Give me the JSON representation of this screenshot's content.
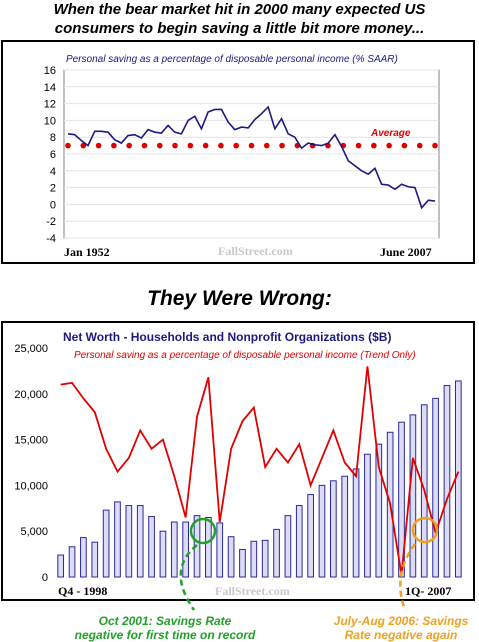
{
  "headline_line1": "When the bear market hit in 2000 many expected US",
  "headline_line2": "consumers to begin saving a little bit more money...",
  "subhead": "They Were Wrong:",
  "chart_data": [
    {
      "type": "line",
      "title": "Personal saving as a percentage of disposable personal income (% SAAR)",
      "x_start_label": "Jan 1952",
      "x_end_label": "June 2007",
      "watermark": "FallStreet.com",
      "ylim": [
        -4,
        16
      ],
      "yticks": [
        -4,
        -2,
        0,
        2,
        4,
        6,
        8,
        10,
        12,
        14,
        16
      ],
      "average_label": "Average",
      "average_value": 7,
      "series": [
        {
          "name": "Personal saving rate",
          "color": "#1a1a80",
          "x": [
            1952,
            1953,
            1954,
            1955,
            1956,
            1957,
            1958,
            1959,
            1960,
            1961,
            1962,
            1963,
            1964,
            1965,
            1966,
            1967,
            1968,
            1969,
            1970,
            1971,
            1972,
            1973,
            1974,
            1975,
            1976,
            1977,
            1978,
            1979,
            1980,
            1981,
            1982,
            1983,
            1984,
            1985,
            1986,
            1987,
            1988,
            1989,
            1990,
            1991,
            1992,
            1993,
            1994,
            1995,
            1996,
            1997,
            1998,
            1999,
            2000,
            2001,
            2002,
            2003,
            2004,
            2005,
            2006,
            2007
          ],
          "values": [
            8.4,
            8.3,
            7.6,
            7.0,
            8.7,
            8.7,
            8.6,
            7.7,
            7.3,
            8.2,
            8.3,
            7.9,
            8.9,
            8.6,
            8.5,
            9.4,
            8.6,
            8.4,
            10.0,
            10.5,
            9.0,
            11.0,
            11.3,
            11.3,
            9.8,
            8.9,
            9.2,
            9.1,
            10.1,
            10.8,
            11.6,
            9.0,
            10.2,
            8.4,
            8.0,
            6.7,
            7.3,
            7.1,
            7.0,
            7.3,
            8.3,
            6.9,
            5.2,
            4.6,
            4.0,
            3.6,
            4.3,
            2.4,
            2.3,
            1.8,
            2.4,
            2.1,
            2.0,
            -0.4,
            0.5,
            0.4
          ]
        }
      ]
    },
    {
      "type": "bar",
      "title": "Net Worth - Households and Nonprofit Organizations ($B)",
      "subtitle": "Personal saving as a percentage of disposable personal income (Trend Only)",
      "x_start_label": "Q4 - 1998",
      "x_end_label": "1Q- 2007",
      "watermark": "FallStreet.com",
      "ylim": [
        0,
        25000
      ],
      "yticks": [
        "0",
        "5,000",
        "10,000",
        "15,000",
        "20,000",
        "25,000"
      ],
      "ytick_values": [
        0,
        5000,
        10000,
        15000,
        20000,
        25000
      ],
      "series": [
        {
          "name": "Net Worth",
          "color": "#2a2a9a",
          "values": [
            2400,
            3300,
            4300,
            3800,
            7300,
            8200,
            7800,
            7800,
            6600,
            5000,
            6000,
            6000,
            6700,
            6500,
            5900,
            4400,
            3000,
            3900,
            4000,
            5200,
            6700,
            7800,
            9000,
            10000,
            10500,
            11000,
            11800,
            13400,
            14500,
            15800,
            16900,
            17700,
            18800,
            19500,
            20900,
            21400
          ]
        },
        {
          "name": "Personal saving rate (trend)",
          "color": "#e00000",
          "x": [
            0,
            1,
            2,
            3,
            4,
            5,
            6,
            7,
            8,
            9,
            10,
            11,
            12,
            13,
            14,
            15,
            16,
            17,
            18,
            19,
            20,
            21,
            22,
            23,
            24,
            25,
            26,
            27,
            28,
            29,
            30,
            31,
            32,
            33,
            34,
            35
          ],
          "values": [
            21000,
            21200,
            19500,
            18000,
            14000,
            11500,
            13000,
            16000,
            14000,
            15000,
            11000,
            6500,
            17500,
            21800,
            6000,
            14000,
            17000,
            18500,
            12000,
            14000,
            12500,
            14500,
            10000,
            13000,
            16000,
            12500,
            11000,
            23000,
            12000,
            8000,
            200,
            13000,
            9500,
            4800,
            8500,
            11500
          ]
        }
      ]
    }
  ],
  "annotations": {
    "oct2001_line1": "Oct 2001: Savings Rate",
    "oct2001_line2": "negative for first time on record",
    "julaug2006_line1": "July-Aug 2006: Savings",
    "julaug2006_line2": "Rate negative again"
  },
  "colors": {
    "bottom_annotation_left": "#22a02a",
    "bottom_annotation_right": "#f0a020"
  }
}
